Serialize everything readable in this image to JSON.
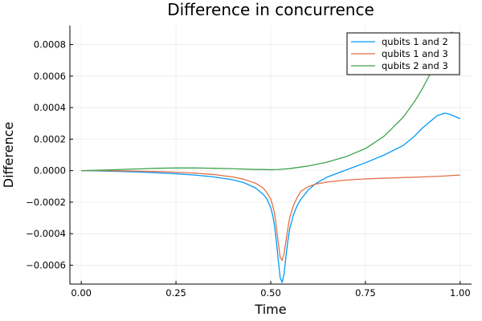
{
  "chart_data": {
    "type": "line",
    "title": "Difference in concurrence",
    "xlabel": "Time",
    "ylabel": "Difference",
    "xlim": [
      -0.03,
      1.03
    ],
    "ylim": [
      -0.00072,
      0.00092
    ],
    "xticks": [
      0.0,
      0.25,
      0.5,
      0.75,
      1.0
    ],
    "xtick_labels": [
      "0.00",
      "0.25",
      "0.50",
      "0.75",
      "1.00"
    ],
    "yticks": [
      -0.0006,
      -0.0004,
      -0.0002,
      0.0,
      0.0002,
      0.0004,
      0.0006,
      0.0008
    ],
    "ytick_labels": [
      "−0.0006",
      "−0.0004",
      "−0.0002",
      "0.0000",
      "0.0002",
      "0.0004",
      "0.0006",
      "0.0008"
    ],
    "grid": true,
    "legend_position": "top-right",
    "series": [
      {
        "name": "qubits 1 and 2",
        "color": "#009AFA",
        "x": [
          0.0,
          0.05,
          0.1,
          0.15,
          0.2,
          0.25,
          0.3,
          0.35,
          0.4,
          0.43,
          0.46,
          0.48,
          0.49,
          0.5,
          0.505,
          0.51,
          0.515,
          0.52,
          0.525,
          0.53,
          0.535,
          0.54,
          0.545,
          0.55,
          0.56,
          0.57,
          0.58,
          0.6,
          0.62,
          0.65,
          0.7,
          0.75,
          0.8,
          0.85,
          0.88,
          0.9,
          0.92,
          0.94,
          0.96,
          0.97,
          0.98,
          1.0
        ],
        "y": [
          0.0,
          -2e-06,
          -5e-06,
          -9e-06,
          -1.4e-05,
          -2e-05,
          -2.8e-05,
          -4e-05,
          -5.8e-05,
          -7.7e-05,
          -0.00011,
          -0.00015,
          -0.00018,
          -0.000235,
          -0.00028,
          -0.00035,
          -0.00045,
          -0.00057,
          -0.00068,
          -0.00071,
          -0.00066,
          -0.00055,
          -0.00045,
          -0.00037,
          -0.00028,
          -0.00022,
          -0.00018,
          -0.00012,
          -8e-05,
          -4e-05,
          5e-06,
          5e-05,
          0.0001,
          0.00016,
          0.00022,
          0.00027,
          0.00031,
          0.00035,
          0.000365,
          0.00036,
          0.00035,
          0.00033
        ]
      },
      {
        "name": "qubits 1 and 3",
        "color": "#E26F46",
        "x": [
          0.0,
          0.05,
          0.1,
          0.15,
          0.2,
          0.25,
          0.3,
          0.35,
          0.4,
          0.43,
          0.46,
          0.48,
          0.49,
          0.5,
          0.505,
          0.51,
          0.515,
          0.52,
          0.525,
          0.53,
          0.535,
          0.54,
          0.545,
          0.55,
          0.56,
          0.57,
          0.58,
          0.6,
          0.62,
          0.65,
          0.7,
          0.75,
          0.8,
          0.85,
          0.9,
          0.95,
          1.0
        ],
        "y": [
          0.0,
          0.0,
          -1e-06,
          -3e-06,
          -6e-06,
          -1e-05,
          -1.6e-05,
          -2.5e-05,
          -4e-05,
          -5.5e-05,
          -8e-05,
          -0.00011,
          -0.00014,
          -0.00018,
          -0.00022,
          -0.00027,
          -0.00036,
          -0.00046,
          -0.00055,
          -0.00057,
          -0.00053,
          -0.00045,
          -0.00037,
          -0.0003,
          -0.00022,
          -0.00017,
          -0.00013,
          -0.0001,
          -8.5e-05,
          -7.2e-05,
          -6e-05,
          -5.2e-05,
          -4.8e-05,
          -4.4e-05,
          -4e-05,
          -3.5e-05,
          -2.8e-05
        ]
      },
      {
        "name": "qubits 2 and 3",
        "color": "#3DA44D",
        "x": [
          0.0,
          0.05,
          0.1,
          0.15,
          0.2,
          0.25,
          0.3,
          0.35,
          0.4,
          0.45,
          0.5,
          0.52,
          0.55,
          0.6,
          0.65,
          0.7,
          0.75,
          0.8,
          0.85,
          0.88,
          0.9,
          0.92,
          0.94,
          0.95,
          0.96,
          0.97,
          0.98
        ],
        "y": [
          0.0,
          3e-06,
          7e-06,
          1.1e-05,
          1.5e-05,
          1.7e-05,
          1.7e-05,
          1.5e-05,
          1.2e-05,
          8e-06,
          6e-06,
          7e-06,
          1.3e-05,
          3e-05,
          5.5e-05,
          9e-05,
          0.00014,
          0.00022,
          0.00034,
          0.00044,
          0.00052,
          0.00061,
          0.0007,
          0.00075,
          0.00081,
          0.00087,
          0.00088
        ]
      }
    ]
  }
}
